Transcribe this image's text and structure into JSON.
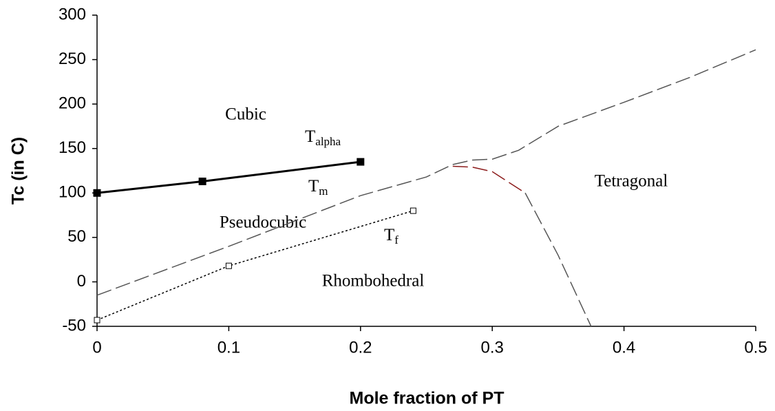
{
  "chart_data": {
    "type": "line",
    "x_label": "Mole fraction of PT",
    "y_label": "Tc (in C)",
    "xlim": [
      0,
      0.5
    ],
    "ylim": [
      -50,
      300
    ],
    "xticks": [
      0,
      0.1,
      0.2,
      0.3,
      0.4,
      0.5
    ],
    "yticks": [
      -50,
      0,
      50,
      100,
      150,
      200,
      250,
      300
    ],
    "series": [
      {
        "color": "#000000",
        "style": "solid",
        "marker": "filled-square",
        "x": [
          0,
          0.08,
          0.2
        ],
        "values": [
          100,
          113,
          135
        ]
      },
      {
        "color": "#000000",
        "style": "dotted",
        "marker": "open-square",
        "x": [
          0,
          0.1,
          0.24
        ],
        "values": [
          -43,
          18,
          80
        ]
      },
      {
        "color": "#555555",
        "style": "dashed",
        "marker": "none",
        "x": [
          0,
          0.1,
          0.2,
          0.25,
          0.27,
          0.285,
          0.3,
          0.32,
          0.35,
          0.4,
          0.45,
          0.5
        ],
        "values": [
          -15,
          40,
          97,
          118,
          132,
          137,
          138,
          148,
          175,
          202,
          230,
          261
        ]
      },
      {
        "color": "#8b1a1a",
        "style": "dashed",
        "marker": "none",
        "x": [
          0.27,
          0.285,
          0.3,
          0.325
        ],
        "values": [
          130,
          129,
          124,
          100
        ]
      },
      {
        "color": "#555555",
        "style": "dashed",
        "marker": "none",
        "x": [
          0.325,
          0.35,
          0.375
        ],
        "values": [
          100,
          30,
          -50
        ]
      }
    ],
    "annotations": [
      {
        "text": "Cubic"
      },
      {
        "text": "T",
        "sub": "alpha"
      },
      {
        "text": "T",
        "sub": "m"
      },
      {
        "text": "Tetragonal"
      },
      {
        "text": "Pseudocubic"
      },
      {
        "text": "T",
        "sub": "f"
      },
      {
        "text": "Rhombohedral"
      }
    ]
  }
}
